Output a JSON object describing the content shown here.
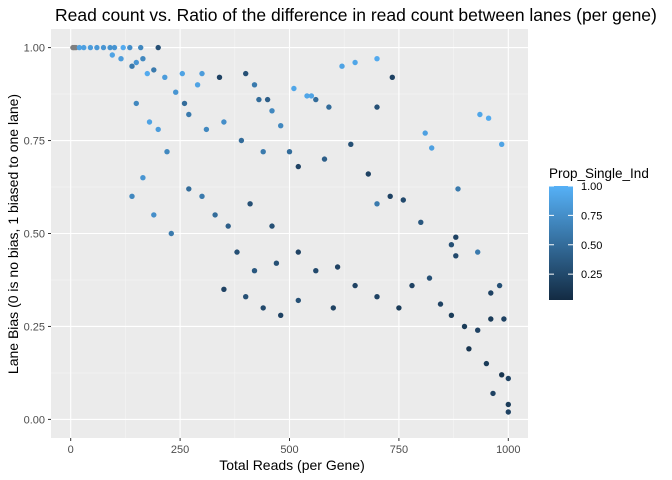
{
  "chart_data": {
    "type": "scatter",
    "title": "Read count vs. Ratio of the difference in read count between lanes (per gene)",
    "xlabel": "Total Reads (per Gene)",
    "ylabel": "Lane Bias (0 is no bias, 1 biased to one lane)",
    "xlim": [
      -45,
      1045
    ],
    "ylim": [
      -0.05,
      1.05
    ],
    "x_ticks": [
      "0",
      "250",
      "500",
      "750",
      "1000"
    ],
    "x_tick_values": [
      0,
      250,
      500,
      750,
      1000
    ],
    "y_ticks": [
      "0.00",
      "0.25",
      "0.50",
      "0.75",
      "1.00"
    ],
    "y_tick_values": [
      0,
      0.25,
      0.5,
      0.75,
      1.0
    ],
    "grid": true,
    "legend": {
      "title": "Prop_Single_Ind",
      "placement": "right",
      "labels": [
        "1.00",
        "0.75",
        "0.50",
        "0.25"
      ],
      "label_values": [
        1.0,
        0.75,
        0.5,
        0.25
      ],
      "range": [
        0.03,
        1.0
      ],
      "color_low": "#132B43",
      "color_high": "#56B1F7"
    },
    "colors": {
      "panel": "#EBEBEB",
      "grid_major": "#FFFFFF",
      "grid_minor": "#F5F5F5",
      "na_point": "#7F7F7F"
    },
    "series": [
      {
        "points": [
          [
            5,
            1.0,
            null
          ],
          [
            8,
            1.0,
            null
          ],
          [
            12,
            1.0,
            null
          ],
          [
            20,
            1.0,
            0.9
          ],
          [
            30,
            1.0,
            0.88
          ],
          [
            45,
            1.0,
            0.85
          ],
          [
            60,
            1.0,
            0.82
          ],
          [
            75,
            1.0,
            0.8
          ],
          [
            90,
            1.0,
            0.78
          ],
          [
            100,
            1.0,
            0.8
          ],
          [
            120,
            1.0,
            0.95
          ],
          [
            135,
            1.0,
            0.75
          ],
          [
            160,
            1.0,
            0.7
          ],
          [
            200,
            1.0,
            0.3
          ],
          [
            95,
            0.98,
            0.9
          ],
          [
            115,
            0.97,
            0.85
          ],
          [
            140,
            0.95,
            0.6
          ],
          [
            150,
            0.96,
            0.8
          ],
          [
            165,
            0.97,
            0.7
          ],
          [
            175,
            0.93,
            0.95
          ],
          [
            190,
            0.94,
            0.6
          ],
          [
            215,
            0.92,
            0.85
          ],
          [
            255,
            0.93,
            0.9
          ],
          [
            290,
            0.9,
            0.9
          ],
          [
            300,
            0.93,
            0.85
          ],
          [
            340,
            0.92,
            0.2
          ],
          [
            400,
            0.93,
            0.3
          ],
          [
            420,
            0.9,
            0.6
          ],
          [
            430,
            0.86,
            0.5
          ],
          [
            450,
            0.86,
            0.4
          ],
          [
            460,
            0.83,
            0.7
          ],
          [
            480,
            0.79,
            0.7
          ],
          [
            510,
            0.89,
            0.92
          ],
          [
            540,
            0.87,
            0.92
          ],
          [
            550,
            0.87,
            0.9
          ],
          [
            560,
            0.86,
            0.5
          ],
          [
            590,
            0.84,
            0.5
          ],
          [
            620,
            0.95,
            0.9
          ],
          [
            650,
            0.96,
            0.92
          ],
          [
            700,
            0.97,
            0.95
          ],
          [
            735,
            0.92,
            0.2
          ],
          [
            700,
            0.84,
            0.3
          ],
          [
            810,
            0.77,
            0.88
          ],
          [
            825,
            0.73,
            0.88
          ],
          [
            935,
            0.82,
            0.92
          ],
          [
            955,
            0.81,
            0.95
          ],
          [
            985,
            0.74,
            0.9
          ],
          [
            885,
            0.62,
            0.6
          ],
          [
            240,
            0.88,
            0.8
          ],
          [
            260,
            0.85,
            0.5
          ],
          [
            270,
            0.82,
            0.6
          ],
          [
            310,
            0.78,
            0.7
          ],
          [
            350,
            0.8,
            0.75
          ],
          [
            390,
            0.75,
            0.5
          ],
          [
            440,
            0.72,
            0.6
          ],
          [
            500,
            0.72,
            0.5
          ],
          [
            520,
            0.68,
            0.2
          ],
          [
            580,
            0.7,
            0.4
          ],
          [
            640,
            0.74,
            0.3
          ],
          [
            680,
            0.66,
            0.2
          ],
          [
            700,
            0.58,
            0.6
          ],
          [
            730,
            0.6,
            0.2
          ],
          [
            760,
            0.59,
            0.25
          ],
          [
            800,
            0.53,
            0.35
          ],
          [
            870,
            0.47,
            0.3
          ],
          [
            880,
            0.49,
            0.2
          ],
          [
            880,
            0.44,
            0.25
          ],
          [
            930,
            0.45,
            0.6
          ],
          [
            980,
            0.36,
            0.3
          ],
          [
            960,
            0.34,
            0.2
          ],
          [
            820,
            0.38,
            0.3
          ],
          [
            845,
            0.31,
            0.2
          ],
          [
            870,
            0.28,
            0.15
          ],
          [
            900,
            0.25,
            0.15
          ],
          [
            930,
            0.24,
            0.2
          ],
          [
            960,
            0.27,
            0.15
          ],
          [
            990,
            0.27,
            0.2
          ],
          [
            910,
            0.19,
            0.1
          ],
          [
            950,
            0.15,
            0.15
          ],
          [
            985,
            0.12,
            0.1
          ],
          [
            1000,
            0.11,
            0.2
          ],
          [
            965,
            0.07,
            0.2
          ],
          [
            1000,
            0.04,
            0.15
          ],
          [
            1000,
            0.02,
            0.2
          ],
          [
            150,
            0.85,
            0.7
          ],
          [
            180,
            0.8,
            0.9
          ],
          [
            200,
            0.78,
            0.85
          ],
          [
            220,
            0.72,
            0.7
          ],
          [
            165,
            0.65,
            0.8
          ],
          [
            140,
            0.6,
            0.7
          ],
          [
            190,
            0.55,
            0.75
          ],
          [
            230,
            0.5,
            0.6
          ],
          [
            270,
            0.62,
            0.5
          ],
          [
            300,
            0.6,
            0.6
          ],
          [
            330,
            0.55,
            0.5
          ],
          [
            360,
            0.52,
            0.4
          ],
          [
            410,
            0.58,
            0.3
          ],
          [
            460,
            0.52,
            0.3
          ],
          [
            380,
            0.45,
            0.3
          ],
          [
            420,
            0.4,
            0.35
          ],
          [
            470,
            0.42,
            0.3
          ],
          [
            520,
            0.45,
            0.2
          ],
          [
            560,
            0.4,
            0.25
          ],
          [
            610,
            0.41,
            0.2
          ],
          [
            650,
            0.36,
            0.2
          ],
          [
            700,
            0.33,
            0.2
          ],
          [
            750,
            0.3,
            0.15
          ],
          [
            780,
            0.36,
            0.2
          ],
          [
            600,
            0.3,
            0.2
          ],
          [
            520,
            0.32,
            0.3
          ],
          [
            480,
            0.28,
            0.2
          ],
          [
            440,
            0.3,
            0.25
          ],
          [
            400,
            0.33,
            0.3
          ],
          [
            350,
            0.35,
            0.2
          ]
        ]
      }
    ]
  }
}
